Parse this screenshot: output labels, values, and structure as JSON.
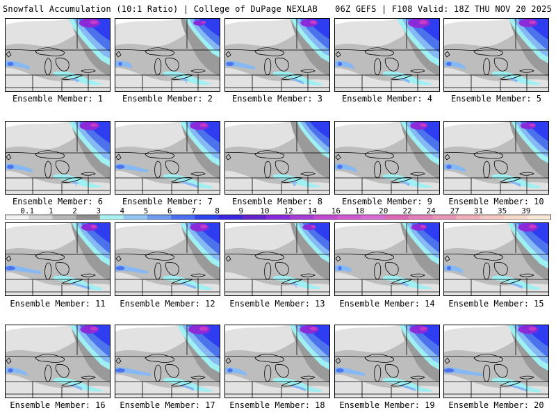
{
  "header": {
    "left_title": "Snowfall Accumulation (10:1 Ratio) | College of DuPage NEXLAB",
    "right_title": "06Z GEFS | F108 Valid: 18Z THU NOV 20 2025"
  },
  "colors": {
    "map_background": "#ffffff",
    "light_gray": "#e2e2e2",
    "mid_gray": "#bdbdbd",
    "dark_gray": "#9a9a9a",
    "cyan": "#9ff0f2",
    "light_blue": "#86b9f4",
    "blue": "#4c73ec",
    "royal_blue": "#2e3df0",
    "purple": "#8a2ad8",
    "magenta": "#c63cc6",
    "border_line": "#000000"
  },
  "members": [
    {
      "label": "Ensemble Member: 1",
      "intensity": 0.95,
      "lake_band": 0.3,
      "west_band": 0.4
    },
    {
      "label": "Ensemble Member: 2",
      "intensity": 0.55,
      "lake_band": 0.2,
      "west_band": 0.1
    },
    {
      "label": "Ensemble Member: 3",
      "intensity": 0.8,
      "lake_band": 0.6,
      "west_band": 0.6
    },
    {
      "label": "Ensemble Member: 4",
      "intensity": 1.0,
      "lake_band": 0.4,
      "west_band": 0.2
    },
    {
      "label": "Ensemble Member: 5",
      "intensity": 0.85,
      "lake_band": 0.3,
      "west_band": 0.3
    },
    {
      "label": "Ensemble Member: 6",
      "intensity": 0.9,
      "lake_band": 0.2,
      "west_band": 0.5
    },
    {
      "label": "Ensemble Member: 7",
      "intensity": 0.85,
      "lake_band": 0.8,
      "west_band": 0.7
    },
    {
      "label": "Ensemble Member: 8",
      "intensity": 0.45,
      "lake_band": 0.1,
      "west_band": 0.0
    },
    {
      "label": "Ensemble Member: 9",
      "intensity": 0.8,
      "lake_band": 0.4,
      "west_band": 0.3
    },
    {
      "label": "Ensemble Member: 10",
      "intensity": 0.7,
      "lake_band": 0.5,
      "west_band": 0.3
    },
    {
      "label": "Ensemble Member: 11",
      "intensity": 0.75,
      "lake_band": 0.9,
      "west_band": 0.8
    },
    {
      "label": "Ensemble Member: 12",
      "intensity": 0.85,
      "lake_band": 0.7,
      "west_band": 0.7
    },
    {
      "label": "Ensemble Member: 13",
      "intensity": 0.6,
      "lake_band": 0.2,
      "west_band": 0.0
    },
    {
      "label": "Ensemble Member: 14",
      "intensity": 0.7,
      "lake_band": 0.3,
      "west_band": 0.1
    },
    {
      "label": "Ensemble Member: 15",
      "intensity": 0.9,
      "lake_band": 0.6,
      "west_band": 0.2
    },
    {
      "label": "Ensemble Member: 16",
      "intensity": 0.85,
      "lake_band": 0.5,
      "west_band": 0.3
    },
    {
      "label": "Ensemble Member: 17",
      "intensity": 1.0,
      "lake_band": 0.6,
      "west_band": 0.8
    },
    {
      "label": "Ensemble Member: 18",
      "intensity": 0.85,
      "lake_band": 0.7,
      "west_band": 0.3
    },
    {
      "label": "Ensemble Member: 19",
      "intensity": 0.85,
      "lake_band": 0.7,
      "west_band": 0.6
    },
    {
      "label": "Ensemble Member: 20",
      "intensity": 0.9,
      "lake_band": 0.8,
      "west_band": 0.9
    }
  ],
  "color_scale": {
    "labels": [
      "0.1",
      "1",
      "2",
      "3",
      "4",
      "5",
      "6",
      "7",
      "8",
      "9",
      "10",
      "12",
      "14",
      "16",
      "18",
      "20",
      "22",
      "24",
      "27",
      "31",
      "35",
      "39"
    ],
    "swatches": [
      "#f2f2f2",
      "#d4d4d4",
      "#b4b4b4",
      "#8f8f8f",
      "#a8f0f0",
      "#92c6f4",
      "#6f9bef",
      "#4c6ff0",
      "#2f45ea",
      "#3c27dd",
      "#6324c8",
      "#8a2ad8",
      "#a63dd4",
      "#c04ad0",
      "#cf5ad2",
      "#d96bd5",
      "#db6ab5",
      "#e27fb8",
      "#e995b8",
      "#efadb9",
      "#f2c6c1",
      "#f5d8c9",
      "#f8e7d6"
    ]
  }
}
